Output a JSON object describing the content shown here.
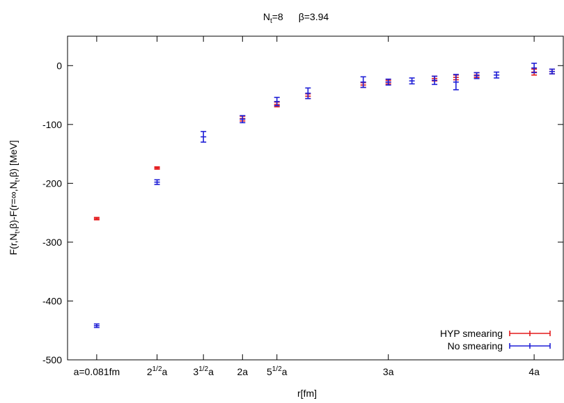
{
  "chart_data": {
    "type": "scatter",
    "title_parts": {
      "nt_base": "N",
      "nt_sub": "t",
      "nt_value": "=8",
      "beta": "β=3.94"
    },
    "xlabel": "r[fm]",
    "ylabel_parts": {
      "a": "F(r,N",
      "a_sub": "t",
      "b": ",β)-F(r=∞,N",
      "b_sub": "t",
      "c": ",β) [MeV]"
    },
    "ylim": [
      -500,
      50
    ],
    "xlim": [
      0.8,
      4.2
    ],
    "yticks": [
      0,
      -100,
      -200,
      -300,
      -400,
      -500
    ],
    "xticks": [
      {
        "value": 1.0,
        "base": "a=0.081fm",
        "sup": ""
      },
      {
        "value": 1.414,
        "base": "2",
        "sup": "1/2",
        "suffix": "a"
      },
      {
        "value": 1.732,
        "base": "3",
        "sup": "1/2",
        "suffix": "a"
      },
      {
        "value": 2.0,
        "base": "2a",
        "sup": ""
      },
      {
        "value": 2.236,
        "base": "5",
        "sup": "1/2",
        "suffix": "a"
      },
      {
        "value": 3.0,
        "base": "3a",
        "sup": ""
      },
      {
        "value": 4.0,
        "base": "4a",
        "sup": ""
      }
    ],
    "legend_position": "bottom-right",
    "series": [
      {
        "name": "HYP smearing",
        "color": "#e41a1c",
        "points": [
          {
            "x": 1.0,
            "y": -260,
            "err": 2
          },
          {
            "x": 1.414,
            "y": -174,
            "err": 2
          },
          {
            "x": 2.0,
            "y": -90,
            "err": 4
          },
          {
            "x": 2.236,
            "y": -66,
            "err": 4
          },
          {
            "x": 2.449,
            "y": -52,
            "err": 4
          },
          {
            "x": 2.828,
            "y": -33,
            "err": 4
          },
          {
            "x": 3.0,
            "y": -28,
            "err": 3
          },
          {
            "x": 3.317,
            "y": -22,
            "err": 4
          },
          {
            "x": 3.464,
            "y": -20,
            "err": 4
          },
          {
            "x": 3.606,
            "y": -16,
            "err": 4
          },
          {
            "x": 4.0,
            "y": -11,
            "err": 5
          },
          {
            "x": 4.123,
            "y": -10,
            "err": 4
          },
          {
            "x": 4.243,
            "y": -9,
            "err": 4
          }
        ]
      },
      {
        "name": "No smearing",
        "color": "#1f1fd6",
        "points": [
          {
            "x": 1.0,
            "y": -442,
            "err": 3
          },
          {
            "x": 1.414,
            "y": -198,
            "err": 4
          },
          {
            "x": 1.732,
            "y": -121,
            "err": 9
          },
          {
            "x": 2.0,
            "y": -91,
            "err": 6
          },
          {
            "x": 2.236,
            "y": -61,
            "err": 7
          },
          {
            "x": 2.449,
            "y": -47,
            "err": 9
          },
          {
            "x": 2.828,
            "y": -28,
            "err": 9
          },
          {
            "x": 3.0,
            "y": -28,
            "err": 5
          },
          {
            "x": 3.162,
            "y": -26,
            "err": 5
          },
          {
            "x": 3.317,
            "y": -25,
            "err": 7
          },
          {
            "x": 3.464,
            "y": -28,
            "err": 13
          },
          {
            "x": 3.606,
            "y": -17,
            "err": 5
          },
          {
            "x": 3.742,
            "y": -16,
            "err": 5
          },
          {
            "x": 4.0,
            "y": -4,
            "err": 8
          },
          {
            "x": 4.123,
            "y": -10,
            "err": 4
          },
          {
            "x": 4.243,
            "y": -9,
            "err": 5
          }
        ]
      }
    ]
  }
}
